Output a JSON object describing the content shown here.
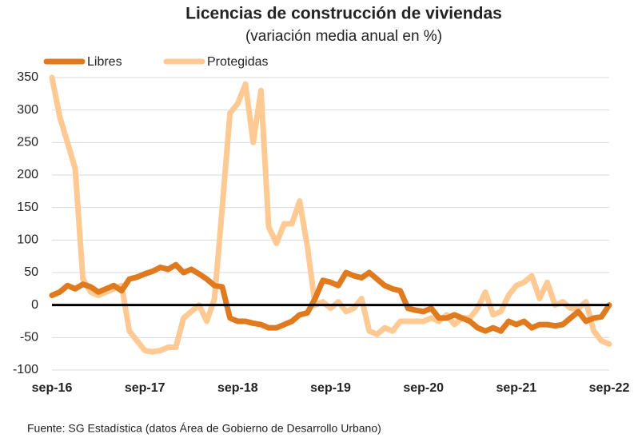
{
  "chart_data": {
    "type": "line",
    "title": "Licencias de construcción de viviendas",
    "subtitle": "(variación media anual en %)",
    "source": "Fuente: SG Estadística (datos Área de Gobierno de Desarrollo Urbano)",
    "categories": [
      "sep-16",
      null,
      null,
      null,
      null,
      null,
      null,
      null,
      null,
      null,
      null,
      null,
      "sep-17",
      null,
      null,
      null,
      null,
      null,
      null,
      null,
      null,
      null,
      null,
      null,
      "sep-18",
      null,
      null,
      null,
      null,
      null,
      null,
      null,
      null,
      null,
      null,
      null,
      "sep-19",
      null,
      null,
      null,
      null,
      null,
      null,
      null,
      null,
      null,
      null,
      null,
      "sep-20",
      null,
      null,
      null,
      null,
      null,
      null,
      null,
      null,
      null,
      null,
      null,
      "sep-21",
      null,
      null,
      null,
      null,
      null,
      null,
      null,
      null,
      null,
      null,
      null,
      "sep-22"
    ],
    "series": [
      {
        "name": "Libres",
        "color": "#e07a1f",
        "values": [
          15,
          20,
          30,
          25,
          32,
          28,
          20,
          25,
          30,
          22,
          40,
          43,
          48,
          52,
          58,
          55,
          62,
          50,
          55,
          48,
          40,
          30,
          28,
          -20,
          -25,
          -25,
          -28,
          -30,
          -35,
          -35,
          -30,
          -25,
          -15,
          -12,
          10,
          38,
          35,
          30,
          50,
          45,
          42,
          50,
          40,
          30,
          25,
          22,
          -5,
          -8,
          -10,
          -5,
          -20,
          -20,
          -15,
          -20,
          -25,
          -35,
          -40,
          -35,
          -40,
          -25,
          -30,
          -25,
          -35,
          -30,
          -30,
          -32,
          -30,
          -20,
          -10,
          -25,
          -20,
          -18,
          0
        ]
      },
      {
        "name": "Protegidas",
        "color": "#ffc993",
        "values": [
          350,
          290,
          250,
          210,
          40,
          20,
          15,
          20,
          25,
          30,
          -40,
          -55,
          -70,
          -72,
          -70,
          -65,
          -65,
          -20,
          -10,
          0,
          -25,
          10,
          150,
          295,
          310,
          340,
          250,
          330,
          120,
          95,
          125,
          125,
          160,
          90,
          0,
          5,
          -5,
          5,
          -10,
          -5,
          10,
          -40,
          -45,
          -35,
          -40,
          -25,
          -25,
          -25,
          -25,
          -20,
          -25,
          -15,
          -30,
          -20,
          -20,
          -5,
          20,
          -15,
          -10,
          15,
          30,
          35,
          45,
          10,
          35,
          0,
          5,
          -5,
          -5,
          5,
          -40,
          -55,
          -60
        ]
      }
    ],
    "ylim": [
      -100,
      350
    ],
    "yticks": [
      -100,
      -50,
      0,
      50,
      100,
      150,
      200,
      250,
      300,
      350
    ],
    "grid": true,
    "legend": "top"
  }
}
